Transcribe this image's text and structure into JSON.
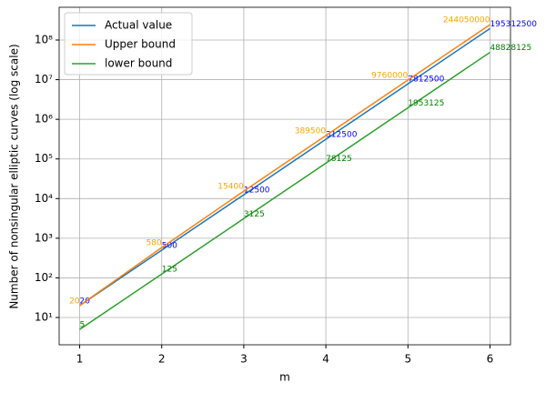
{
  "chart_data": {
    "type": "line",
    "x_label": "m",
    "y_label": "Number of nonsingular elliptic curves (log scale)",
    "x": [
      1,
      2,
      3,
      4,
      5,
      6
    ],
    "series": [
      {
        "name": "Actual value",
        "color": "#1f77b4",
        "label_color": "#0000ff",
        "label_anchor": "start",
        "values": [
          20,
          500,
          12500,
          312500,
          7812500,
          195312500
        ]
      },
      {
        "name": "Upper bound",
        "color": "#ff7f0e",
        "label_color": "#ffa500",
        "label_anchor": "end",
        "values": [
          20,
          580,
          15400,
          389500,
          9760000,
          244050000
        ]
      },
      {
        "name": "lower bound",
        "color": "#2ca02c",
        "label_color": "#008000",
        "label_anchor": "start",
        "values": [
          5,
          125,
          3125,
          78125,
          1953125,
          48828125
        ]
      }
    ],
    "xlim": [
      0.75,
      6.25
    ],
    "xticks": [
      1,
      2,
      3,
      4,
      5,
      6
    ],
    "ylim": [
      2.05,
      670000000
    ],
    "ylog": true,
    "yticks": [
      {
        "value": 10,
        "label": "10¹"
      },
      {
        "value": 100,
        "label": "10²"
      },
      {
        "value": 1000,
        "label": "10³"
      },
      {
        "value": 10000,
        "label": "10⁴"
      },
      {
        "value": 100000,
        "label": "10⁵"
      },
      {
        "value": 1000000,
        "label": "10⁶"
      },
      {
        "value": 10000000,
        "label": "10⁷"
      },
      {
        "value": 100000000,
        "label": "10⁸"
      }
    ],
    "grid": true,
    "legend": "upper-left"
  }
}
